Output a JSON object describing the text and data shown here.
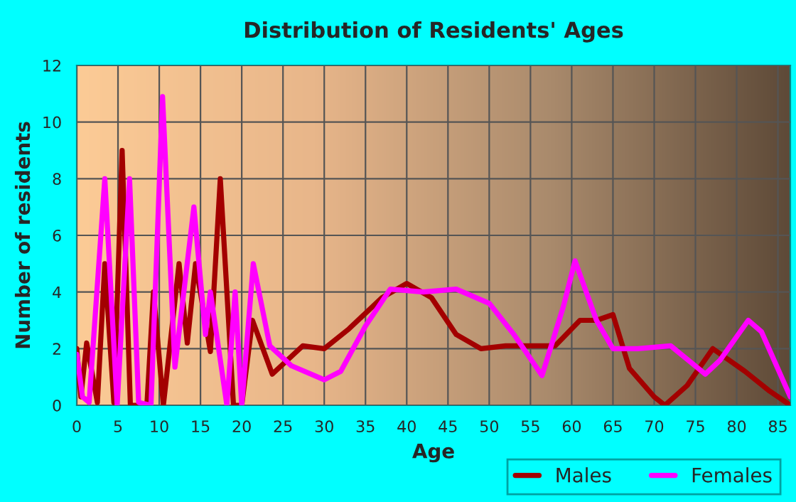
{
  "chart_data": {
    "type": "line",
    "title": "Distribution of Residents' Ages",
    "xlabel": "Age",
    "ylabel": "Number of residents",
    "xlim": [
      0,
      86.5
    ],
    "xticks": [
      0,
      5,
      10,
      15,
      20,
      25,
      30,
      35,
      40,
      45,
      50,
      55,
      60,
      65,
      70,
      75,
      80,
      85
    ],
    "ylim": [
      0,
      12
    ],
    "yticks": [
      0,
      2,
      4,
      6,
      8,
      10,
      12
    ],
    "grid": true,
    "legend": "bottom right",
    "line_style": "solid",
    "series": [
      {
        "name": "Males",
        "color": "#a30000",
        "x": [
          0,
          0.5,
          1.2,
          2.5,
          3.4,
          4.5,
          5.5,
          6.5,
          8.5,
          9.3,
          10.5,
          12.4,
          13.4,
          14.4,
          16.2,
          17.4,
          19,
          20,
          21.3,
          23.7,
          27.4,
          30,
          33,
          37,
          40,
          43,
          46,
          49,
          52,
          55,
          58,
          61,
          63,
          65,
          67,
          70,
          71.3,
          74,
          77.1,
          81,
          84,
          86.5
        ],
        "values": [
          2.0,
          0.3,
          2.2,
          0.1,
          5,
          0.1,
          9,
          0,
          0,
          4,
          0,
          5,
          2.2,
          5,
          1.9,
          8,
          0,
          0,
          3,
          1.1,
          2.1,
          2.0,
          2.7,
          3.8,
          4.3,
          3.8,
          2.5,
          2.0,
          2.1,
          2.1,
          2.1,
          3.0,
          3.0,
          3.2,
          1.3,
          0.3,
          0,
          0.7,
          2.0,
          1.2,
          0.5,
          0
        ]
      },
      {
        "name": "Females",
        "color": "#ff00ff",
        "x": [
          0,
          0.7,
          1.5,
          3.4,
          4.9,
          6.4,
          7.5,
          9,
          10.4,
          11.9,
          14.2,
          15.6,
          16.2,
          18.2,
          19.2,
          20,
          21.4,
          23.4,
          26,
          30,
          32,
          35,
          38,
          42,
          46,
          50,
          53,
          56.4,
          59,
          60.4,
          63,
          65,
          68,
          72,
          76.2,
          78,
          81.4,
          83,
          86.5
        ],
        "values": [
          1.8,
          0.3,
          0.1,
          8,
          0,
          8,
          0.1,
          0,
          10.9,
          1.35,
          7,
          2.5,
          4,
          0,
          4,
          0,
          5,
          2.1,
          1.4,
          0.9,
          1.2,
          2.8,
          4.1,
          4.0,
          4.1,
          3.6,
          2.5,
          1.05,
          3.5,
          5.1,
          3.0,
          2.0,
          2.0,
          2.1,
          1.1,
          1.6,
          3.0,
          2.6,
          0.3
        ]
      }
    ]
  }
}
